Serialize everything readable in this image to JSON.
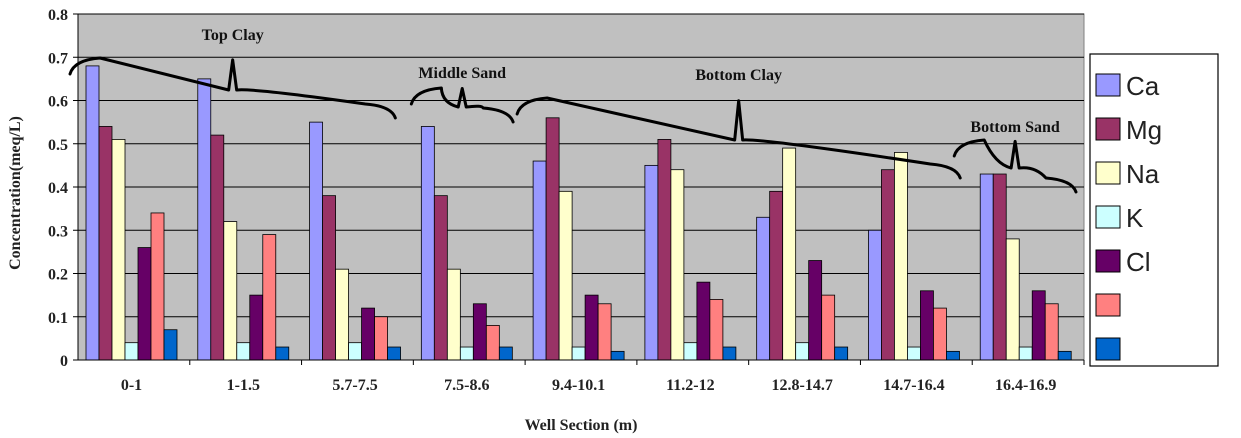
{
  "chart_data": {
    "type": "bar",
    "title": "",
    "xlabel": "Well Section (m)",
    "ylabel": "Concentration(meq/L)",
    "ylim": [
      0,
      0.8
    ],
    "yticks": [
      "0",
      "0.1",
      "0.2",
      "0.3",
      "0.4",
      "0.5",
      "0.6",
      "0.7",
      "0.8"
    ],
    "grid": true,
    "legend_position": "right",
    "categories": [
      "0-1",
      "1-1.5",
      "5.7-7.5",
      "7.5-8.6",
      "9.4-10.1",
      "11.2-12",
      "12.8-14.7",
      "14.7-16.4",
      "16.4-16.9"
    ],
    "series": [
      {
        "name": "Ca",
        "color": "#9999ff",
        "values": [
          0.68,
          0.65,
          0.55,
          0.54,
          0.46,
          0.45,
          0.33,
          0.3,
          0.43
        ]
      },
      {
        "name": "Mg",
        "color": "#993366",
        "values": [
          0.54,
          0.52,
          0.38,
          0.38,
          0.56,
          0.51,
          0.39,
          0.44,
          0.43
        ]
      },
      {
        "name": "Na",
        "color": "#ffffcc",
        "values": [
          0.51,
          0.32,
          0.21,
          0.21,
          0.39,
          0.44,
          0.49,
          0.48,
          0.28
        ]
      },
      {
        "name": "K",
        "color": "#ccffff",
        "values": [
          0.04,
          0.04,
          0.04,
          0.03,
          0.03,
          0.04,
          0.04,
          0.03,
          0.03
        ]
      },
      {
        "name": "Cl",
        "color": "#660066",
        "values": [
          0.26,
          0.15,
          0.12,
          0.13,
          0.15,
          0.18,
          0.23,
          0.16,
          0.16
        ]
      },
      {
        "name": "",
        "color": "#ff8080",
        "values": [
          0.34,
          0.29,
          0.1,
          0.08,
          0.13,
          0.14,
          0.15,
          0.12,
          0.13
        ]
      },
      {
        "name": "",
        "color": "#0066cc",
        "values": [
          0.07,
          0.03,
          0.03,
          0.03,
          0.02,
          0.03,
          0.03,
          0.02,
          0.02
        ]
      }
    ],
    "annotations": [
      {
        "text": "Top Clay",
        "from": 0,
        "to": 2
      },
      {
        "text": "Middle Sand",
        "from": 3,
        "to": 3
      },
      {
        "text": "Bottom Clay",
        "from": 4,
        "to": 7
      },
      {
        "text": "Bottom Sand",
        "from": 8,
        "to": 8
      }
    ]
  }
}
